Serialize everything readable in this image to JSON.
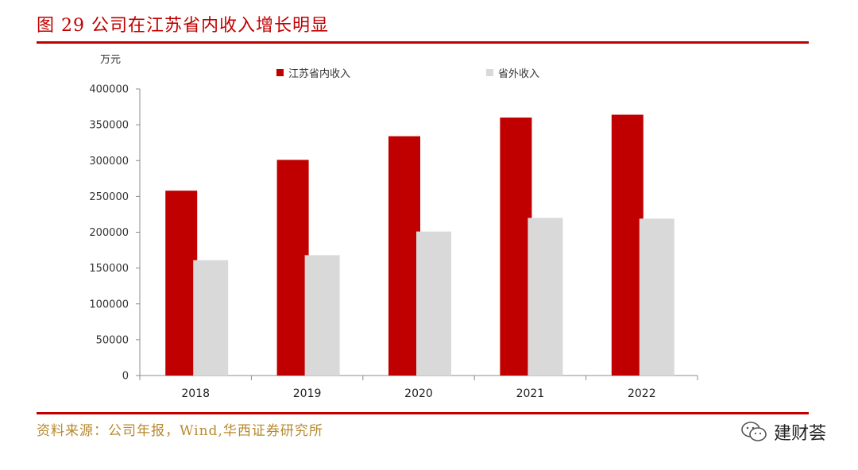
{
  "title": "图 29 公司在江苏省内收入增长明显",
  "unit": "万元",
  "source": "资料来源：公司年报，Wind,华西证券研究所",
  "watermark": "建财荟",
  "chart_data": {
    "type": "bar",
    "categories": [
      "2018",
      "2019",
      "2020",
      "2021",
      "2022"
    ],
    "series": [
      {
        "name": "江苏省内收入",
        "color": "#c00000",
        "values": [
          258000,
          301000,
          334000,
          360000,
          364000
        ]
      },
      {
        "name": "省外收入",
        "color": "#d9d9d9",
        "values": [
          161000,
          168000,
          201000,
          220000,
          219000
        ]
      }
    ],
    "ylabel": "万元",
    "ylim": [
      0,
      400000
    ],
    "yticks": [
      0,
      50000,
      100000,
      150000,
      200000,
      250000,
      300000,
      350000,
      400000
    ],
    "grid": false,
    "legend": "top"
  }
}
